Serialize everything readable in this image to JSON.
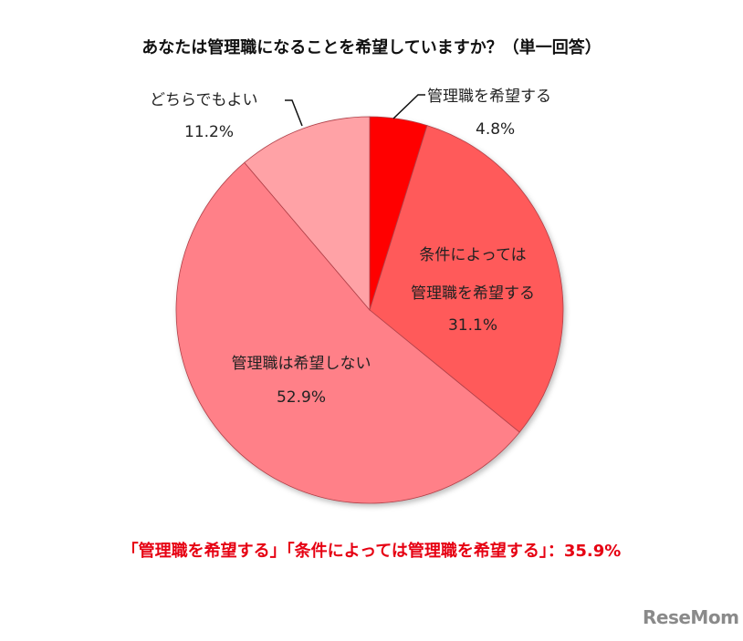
{
  "title": "あなたは管理職になることを希望していますか？（単一回答）",
  "labels": {
    "want": {
      "name": "管理職を希望する",
      "pct": "4.8%"
    },
    "conditional": {
      "name1": "条件によっては",
      "name2": "管理職を希望する",
      "pct": "31.1%"
    },
    "not_want": {
      "name": "管理職は希望しない",
      "pct": "52.9%"
    },
    "either": {
      "name": "どちらでもよい",
      "pct": "11.2%"
    }
  },
  "summary": "「管理職を希望する」「条件によっては管理職を希望する」：35.9%",
  "logo": "ReseMom",
  "colors": {
    "want": "#ff0000",
    "conditional": "#ff5a5a",
    "not_want": "#ff8088",
    "either": "#ffa2a6",
    "summary": "#e60012"
  },
  "chart_data": {
    "type": "pie",
    "title": "あなたは管理職になることを希望していますか？（単一回答）",
    "categories": [
      "管理職を希望する",
      "条件によっては管理職を希望する",
      "管理職は希望しない",
      "どちらでもよい"
    ],
    "values": [
      4.8,
      31.1,
      52.9,
      11.2
    ],
    "unit": "%",
    "start_angle": "12 o'clock, clockwise",
    "annotation": "「管理職を希望する」「条件によっては管理職を希望する」：35.9%",
    "legend": "none (data labels on/near slices)"
  }
}
